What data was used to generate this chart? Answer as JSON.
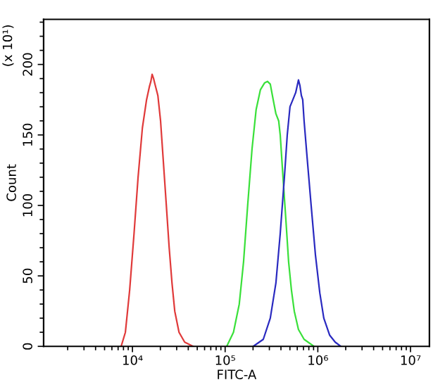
{
  "chart_data": {
    "type": "line",
    "xlabel": "FITC-A",
    "ylabel": "Count",
    "annotations": [
      "(x 10¹)"
    ],
    "log": "x",
    "grid": false,
    "marker": "none",
    "line_style": "solid",
    "xlim": [
      1100,
      16000000
    ],
    "ylim": [
      0,
      232
    ],
    "xticks": [
      {
        "value": 10000,
        "label": "10⁴"
      },
      {
        "value": 100000,
        "label": "10⁵"
      },
      {
        "value": 1000000,
        "label": "10⁶"
      },
      {
        "value": 10000000,
        "label": "10⁷"
      }
    ],
    "yticks": [
      0,
      50,
      100,
      150,
      200
    ],
    "series": [
      {
        "color": "#e03a3a",
        "x": [
          7550,
          8390,
          9330,
          10400,
          11500,
          12800,
          14200,
          15200,
          15800,
          16300,
          16900,
          17500,
          18800,
          20100,
          21600,
          23200,
          24900,
          26700,
          28600,
          31800,
          36600,
          45100
        ],
        "values": [
          0,
          10,
          40,
          80,
          120,
          155,
          175,
          184,
          188,
          193,
          190,
          186,
          178,
          160,
          130,
          100,
          70,
          45,
          25,
          10,
          3,
          0
        ]
      },
      {
        "color": "#3ae03a",
        "x": [
          104000,
          123000,
          142000,
          158000,
          175000,
          195000,
          216000,
          240000,
          267000,
          286000,
          307000,
          330000,
          353000,
          378000,
          393000,
          421000,
          452000,
          484000,
          519000,
          557000,
          618000,
          711000,
          910000
        ],
        "values": [
          0,
          10,
          30,
          60,
          100,
          140,
          168,
          182,
          187,
          188,
          186,
          175,
          165,
          160,
          150,
          120,
          90,
          60,
          40,
          25,
          12,
          5,
          0
        ]
      },
      {
        "color": "#2a2ac0",
        "x": [
          201000,
          258000,
          307000,
          353000,
          393000,
          436000,
          468000,
          501000,
          538000,
          577000,
          618000,
          641000,
          664000,
          687000,
          711000,
          764000,
          847000,
          942000,
          1050000,
          1160000,
          1340000,
          1540000,
          1770000
        ],
        "values": [
          0,
          5,
          20,
          45,
          80,
          120,
          150,
          170,
          175,
          180,
          189,
          185,
          178,
          175,
          160,
          135,
          100,
          65,
          38,
          20,
          8,
          3,
          0
        ]
      }
    ]
  }
}
